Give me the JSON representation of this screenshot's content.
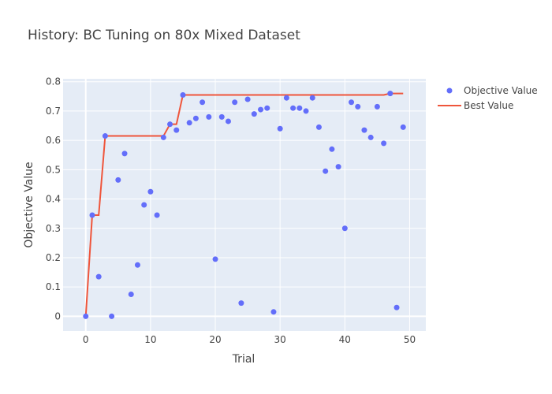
{
  "chart_data": {
    "type": "scatter",
    "title": "History: BC Tuning on 80x Mixed Dataset",
    "xlabel": "Trial",
    "ylabel": "Objective Value",
    "xlim": [
      -3.5,
      52.5
    ],
    "ylim": [
      -0.05,
      0.81
    ],
    "x_ticks": [
      0,
      10,
      20,
      30,
      40,
      50
    ],
    "y_ticks": [
      0,
      0.1,
      0.2,
      0.3,
      0.4,
      0.5,
      0.6,
      0.7,
      0.8
    ],
    "x_tick_labels": [
      "0",
      "10",
      "20",
      "30",
      "40",
      "50"
    ],
    "y_tick_labels": [
      "0",
      "0.1",
      "0.2",
      "0.3",
      "0.4",
      "0.5",
      "0.6",
      "0.7",
      "0.8"
    ],
    "grid": true,
    "legend_position": "top-right",
    "series": [
      {
        "name": "Objective Value",
        "mode": "markers",
        "color": "#636efa",
        "x": [
          0,
          1,
          2,
          3,
          4,
          5,
          6,
          7,
          8,
          9,
          10,
          11,
          12,
          13,
          14,
          15,
          16,
          17,
          18,
          19,
          20,
          21,
          22,
          23,
          24,
          25,
          26,
          27,
          28,
          29,
          30,
          31,
          32,
          33,
          34,
          35,
          36,
          37,
          38,
          39,
          40,
          41,
          42,
          43,
          44,
          45,
          46,
          47,
          48,
          49
        ],
        "y": [
          0.0,
          0.345,
          0.135,
          0.615,
          0.0,
          0.465,
          0.555,
          0.075,
          0.175,
          0.38,
          0.425,
          0.345,
          0.61,
          0.655,
          0.635,
          0.755,
          0.66,
          0.675,
          0.73,
          0.68,
          0.195,
          0.68,
          0.665,
          0.73,
          0.045,
          0.74,
          0.69,
          0.705,
          0.71,
          0.015,
          0.64,
          0.745,
          0.71,
          0.71,
          0.7,
          0.745,
          0.645,
          0.495,
          0.57,
          0.51,
          0.3,
          0.73,
          0.715,
          0.635,
          0.61,
          0.715,
          0.59,
          0.76,
          0.03,
          0.645
        ]
      },
      {
        "name": "Best Value",
        "mode": "lines",
        "color": "#ef553b",
        "x": [
          0,
          1,
          2,
          3,
          4,
          5,
          6,
          7,
          8,
          9,
          10,
          11,
          12,
          13,
          14,
          15,
          16,
          17,
          18,
          19,
          20,
          21,
          22,
          23,
          24,
          25,
          26,
          27,
          28,
          29,
          30,
          31,
          32,
          33,
          34,
          35,
          36,
          37,
          38,
          39,
          40,
          41,
          42,
          43,
          44,
          45,
          46,
          47,
          48,
          49
        ],
        "y": [
          0.0,
          0.345,
          0.345,
          0.615,
          0.615,
          0.615,
          0.615,
          0.615,
          0.615,
          0.615,
          0.615,
          0.615,
          0.615,
          0.655,
          0.655,
          0.755,
          0.755,
          0.755,
          0.755,
          0.755,
          0.755,
          0.755,
          0.755,
          0.755,
          0.755,
          0.755,
          0.755,
          0.755,
          0.755,
          0.755,
          0.755,
          0.755,
          0.755,
          0.755,
          0.755,
          0.755,
          0.755,
          0.755,
          0.755,
          0.755,
          0.755,
          0.755,
          0.755,
          0.755,
          0.755,
          0.755,
          0.755,
          0.76,
          0.76,
          0.76
        ]
      }
    ]
  }
}
